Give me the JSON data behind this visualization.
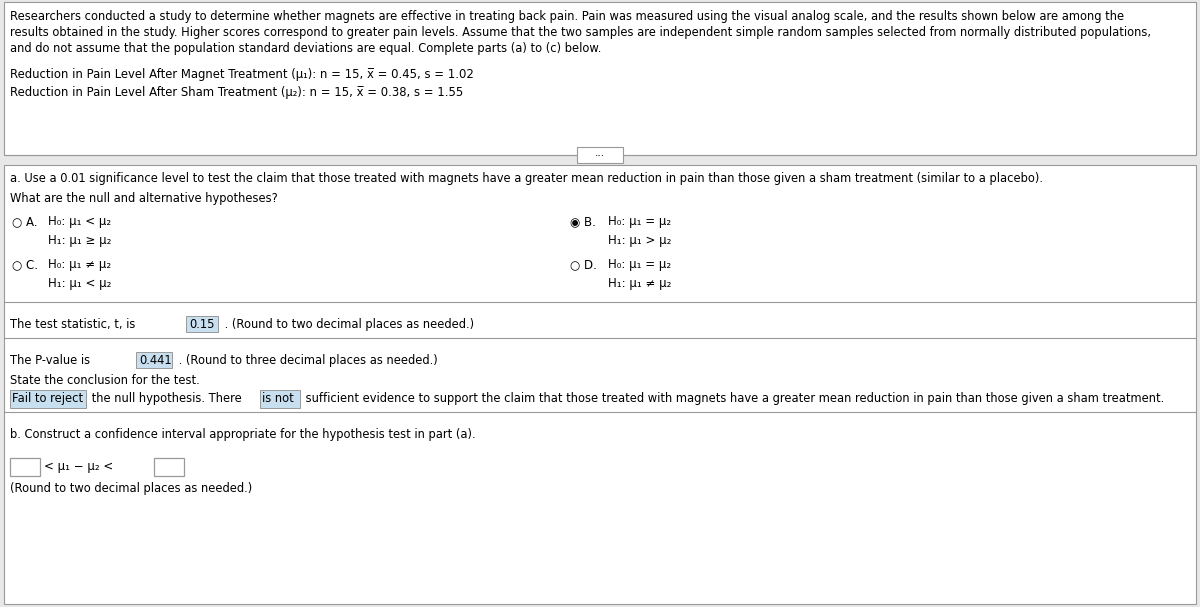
{
  "bg_color": "#e8e8e8",
  "white_color": "#ffffff",
  "text_color": "#000000",
  "highlight_color": "#c8dff0",
  "border_color": "#999999",
  "intro_line1": "Researchers conducted a study to determine whether magnets are effective in treating back pain. Pain was measured using the visual analog scale, and the results shown below are among the",
  "intro_line2": "results obtained in the study. Higher scores correspond to greater pain levels. Assume that the two samples are independent simple random samples selected from normally distributed populations,",
  "intro_line3": "and do not assume that the population standard deviations are equal. Complete parts (a) to (c) below.",
  "row1_label": "Reduction in Pain Level After Magnet Treatment (μ₁): n = 15, x̅ = 0.45, s = 1.02",
  "row2_label": "Reduction in Pain Level After Sham Treatment (μ₂): n = 15, x̅ = 0.38, s = 1.55",
  "part_a_text": "a. Use a 0.01 significance level to test the claim that those treated with magnets have a greater mean reduction in pain than those given a sham treatment (similar to a placebo).",
  "hypotheses_prompt": "What are the null and alternative hypotheses?",
  "optA_radio": "○ A.",
  "optA_line1": "H₀: μ₁ < μ₂",
  "optA_line2": "H₁: μ₁ ≥ μ₂",
  "optB_radio": "◉ B.",
  "optB_line1": "H₀: μ₁ = μ₂",
  "optB_line2": "H₁: μ₁ > μ₂",
  "optC_radio": "○ C.",
  "optC_line1": "H₀: μ₁ ≠ μ₂",
  "optC_line2": "H₁: μ₁ < μ₂",
  "optD_radio": "○ D.",
  "optD_line1": "H₀: μ₁ = μ₂",
  "optD_line2": "H₁: μ₁ ≠ μ₂",
  "t_stat_pre": "The test statistic, t, is ",
  "t_stat_value": "0.15",
  "t_stat_post": " . (Round to two decimal places as needed.)",
  "pvalue_pre": "The P-value is ",
  "pvalue_value": "0.441",
  "pvalue_post": " . (Round to three decimal places as needed.)",
  "conclusion_prompt": "State the conclusion for the test.",
  "conc_h1": "Fail to reject",
  "conc_mid": " the null hypothesis. There ",
  "conc_h2": "is not",
  "conc_end": " sufficient evidence to support the claim that those treated with magnets have a greater mean reduction in pain than those given a sham treatment.",
  "part_b_text": "b. Construct a confidence interval appropriate for the hypothesis test in part (a).",
  "ci_middle": "< μ₁ − μ₂ <",
  "ci_suffix": "(Round to two decimal places as needed.)",
  "dots_label": "..."
}
